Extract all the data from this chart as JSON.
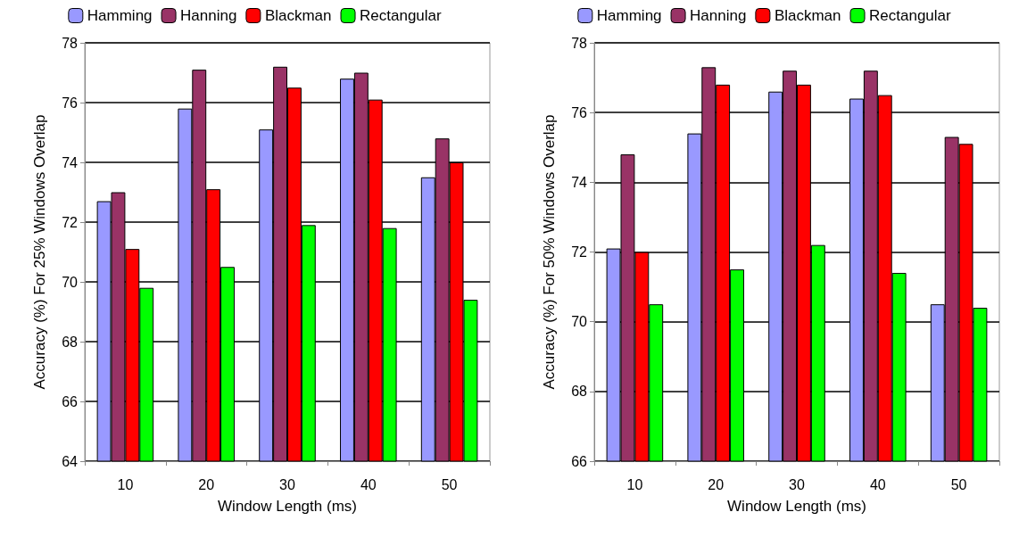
{
  "chart_data": [
    {
      "type": "bar",
      "xlabel": "Window Length (ms)",
      "ylabel": "Accuracy (%) For 25% Windows Overlap",
      "categories": [
        "10",
        "20",
        "30",
        "40",
        "50"
      ],
      "ylim": [
        64,
        78
      ],
      "yticks": [
        64,
        66,
        68,
        70,
        72,
        74,
        76,
        78
      ],
      "grid": "y",
      "legend": "top",
      "series": [
        {
          "name": "Hamming",
          "color": "#9999ff",
          "values": [
            72.7,
            75.8,
            75.1,
            76.8,
            73.5
          ]
        },
        {
          "name": "Hanning",
          "color": "#993366",
          "values": [
            73.0,
            77.1,
            77.2,
            77.0,
            74.8
          ]
        },
        {
          "name": "Blackman",
          "color": "#ff0000",
          "values": [
            71.1,
            73.1,
            76.5,
            76.1,
            74.0
          ]
        },
        {
          "name": "Rectangular",
          "color": "#00ff00",
          "values": [
            69.8,
            70.5,
            71.9,
            71.8,
            69.4
          ]
        }
      ]
    },
    {
      "type": "bar",
      "xlabel": "Window Length (ms)",
      "ylabel": "Accuracy (%) For 50% Windows Overlap",
      "categories": [
        "10",
        "20",
        "30",
        "40",
        "50"
      ],
      "ylim": [
        66,
        78
      ],
      "yticks": [
        66,
        68,
        70,
        72,
        74,
        76,
        78
      ],
      "grid": "y",
      "legend": "top",
      "series": [
        {
          "name": "Hamming",
          "color": "#9999ff",
          "values": [
            72.1,
            75.4,
            76.6,
            76.4,
            70.5
          ]
        },
        {
          "name": "Hanning",
          "color": "#993366",
          "values": [
            74.8,
            77.3,
            77.2,
            77.2,
            75.3
          ]
        },
        {
          "name": "Blackman",
          "color": "#ff0000",
          "values": [
            72.0,
            76.8,
            76.8,
            76.5,
            75.1
          ]
        },
        {
          "name": "Rectangular",
          "color": "#00ff00",
          "values": [
            70.5,
            71.5,
            72.2,
            71.4,
            70.4
          ]
        }
      ]
    }
  ]
}
